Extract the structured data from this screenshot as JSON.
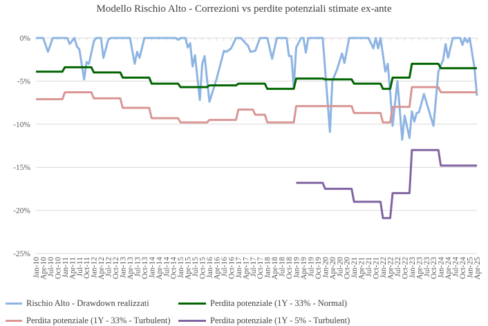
{
  "chart_data": {
    "type": "line",
    "title": "Modello Rischio Alto - Correzioni vs perdite potenziali stimate ex-ante",
    "xlabel": "",
    "ylabel": "",
    "x_range": [
      "2010-01",
      "2025-04"
    ],
    "x_tick_labels": [
      "Jan-10",
      "Apr-10",
      "Jul-10",
      "Oct-10",
      "Jan-11",
      "Apr-11",
      "Jul-11",
      "Oct-11",
      "Jan-12",
      "Apr-12",
      "Jul-12",
      "Oct-12",
      "Jan-13",
      "Apr-13",
      "Jul-13",
      "Oct-13",
      "Jan-14",
      "Apr-14",
      "Jul-14",
      "Oct-14",
      "Jan-15",
      "Apr-15",
      "Jul-15",
      "Oct-15",
      "Jan-16",
      "Apr-16",
      "Jul-16",
      "Oct-16",
      "Jan-17",
      "Apr-17",
      "Jul-17",
      "Oct-17",
      "Jan-18",
      "Apr-18",
      "Jul-18",
      "Oct-18",
      "Jan-19",
      "Apr-19",
      "Jul-19",
      "Oct-19",
      "Jan-20",
      "Apr-20",
      "Jul-20",
      "Oct-20",
      "Jan-21",
      "Apr-21",
      "Jul-21",
      "Oct-21",
      "Jan-22",
      "Apr-22",
      "Jul-22",
      "Oct-22",
      "Jan-23",
      "Apr-23",
      "Jul-23",
      "Oct-23",
      "Jan-24",
      "Apr-24",
      "Jul-24",
      "Oct-24",
      "Jan-25",
      "Apr-25"
    ],
    "ylim": [
      -25,
      0
    ],
    "y_ticks": [
      0,
      -5,
      -10,
      -15,
      -20,
      -25
    ],
    "y_tick_labels": [
      "0%",
      "-5%",
      "-10%",
      "-15%",
      "-20%",
      "-25%"
    ],
    "grid": true,
    "legend_placement": "bottom",
    "series": [
      {
        "name": "Rischio Alto - Drawdown realizzati",
        "color": "#8db4e2",
        "style": "points",
        "points": [
          [
            "2010-01",
            0
          ],
          [
            "2010-04",
            0
          ],
          [
            "2010-06",
            -1.6
          ],
          [
            "2010-08",
            0
          ],
          [
            "2011-02",
            0
          ],
          [
            "2011-03",
            -0.7
          ],
          [
            "2011-05",
            0
          ],
          [
            "2011-06",
            -1.0
          ],
          [
            "2011-07",
            -1.3
          ],
          [
            "2011-09",
            -4.8
          ],
          [
            "2011-10",
            -2.8
          ],
          [
            "2011-11",
            -3.0
          ],
          [
            "2012-01",
            -0.4
          ],
          [
            "2012-02",
            0
          ],
          [
            "2012-04",
            0
          ],
          [
            "2012-05",
            -2.3
          ],
          [
            "2012-07",
            -0.2
          ],
          [
            "2012-08",
            0
          ],
          [
            "2013-04",
            0
          ],
          [
            "2013-06",
            -3.0
          ],
          [
            "2013-07",
            -1.6
          ],
          [
            "2013-08",
            -2.3
          ],
          [
            "2013-10",
            0
          ],
          [
            "2014-11",
            0
          ],
          [
            "2014-12",
            -0.2
          ],
          [
            "2015-01",
            0
          ],
          [
            "2015-03",
            0
          ],
          [
            "2015-04",
            -1.1
          ],
          [
            "2015-05",
            -0.6
          ],
          [
            "2015-06",
            -3.3
          ],
          [
            "2015-07",
            -2.0
          ],
          [
            "2015-09",
            -7.2
          ],
          [
            "2015-10",
            -3.0
          ],
          [
            "2015-11",
            -2.1
          ],
          [
            "2016-01",
            -7.4
          ],
          [
            "2016-04",
            -4.7
          ],
          [
            "2016-07",
            -1.5
          ],
          [
            "2016-08",
            -1.6
          ],
          [
            "2016-10",
            -1.2
          ],
          [
            "2016-12",
            0
          ],
          [
            "2017-02",
            0
          ],
          [
            "2017-05",
            -0.9
          ],
          [
            "2017-06",
            -1.6
          ],
          [
            "2017-08",
            -1.5
          ],
          [
            "2017-10",
            0
          ],
          [
            "2018-01",
            0
          ],
          [
            "2018-03",
            -2.4
          ],
          [
            "2018-05",
            0
          ],
          [
            "2018-09",
            0
          ],
          [
            "2018-10",
            -2.1
          ],
          [
            "2018-11",
            -2.1
          ],
          [
            "2018-12",
            -5.7
          ],
          [
            "2019-01",
            -1.1
          ],
          [
            "2019-03",
            0
          ],
          [
            "2019-04",
            0
          ],
          [
            "2019-05",
            -1.7
          ],
          [
            "2019-06",
            0
          ],
          [
            "2019-12",
            0
          ],
          [
            "2020-03",
            -10.9
          ],
          [
            "2020-04",
            -5.0
          ],
          [
            "2020-06",
            -3.6
          ],
          [
            "2020-08",
            -1.8
          ],
          [
            "2020-09",
            -2.9
          ],
          [
            "2020-11",
            0
          ],
          [
            "2021-07",
            0
          ],
          [
            "2021-09",
            -1.2
          ],
          [
            "2021-10",
            0
          ],
          [
            "2021-11",
            -1.2
          ],
          [
            "2021-12",
            0
          ],
          [
            "2022-02",
            -3.9
          ],
          [
            "2022-03",
            -3.0
          ],
          [
            "2022-04",
            -6.3
          ],
          [
            "2022-05",
            -10.2
          ],
          [
            "2022-07",
            -5.0
          ],
          [
            "2022-09",
            -11.8
          ],
          [
            "2022-10",
            -9.0
          ],
          [
            "2022-12",
            -11.6
          ],
          [
            "2023-01",
            -8.5
          ],
          [
            "2023-02",
            -9.7
          ],
          [
            "2023-03",
            -8.7
          ],
          [
            "2023-04",
            -8.6
          ],
          [
            "2023-06",
            -6.5
          ],
          [
            "2023-10",
            -10.2
          ],
          [
            "2023-12",
            -3.9
          ],
          [
            "2024-02",
            -2.5
          ],
          [
            "2024-03",
            -0.7
          ],
          [
            "2024-04",
            -2.3
          ],
          [
            "2024-06",
            0
          ],
          [
            "2024-09",
            0
          ],
          [
            "2024-10",
            -0.8
          ],
          [
            "2024-11",
            0
          ],
          [
            "2024-12",
            -0.5
          ],
          [
            "2025-01",
            0
          ],
          [
            "2025-03",
            -3.5
          ],
          [
            "2025-04",
            -6.7
          ]
        ]
      },
      {
        "name": "Perdita potenziale (1Y - 33% - Normal)",
        "color": "#006400",
        "style": "steps",
        "steps": [
          [
            "2010-01",
            -3.9
          ],
          [
            "2011-01",
            -3.4
          ],
          [
            "2012-01",
            -4.0
          ],
          [
            "2013-01",
            -4.6
          ],
          [
            "2014-01",
            -5.3
          ],
          [
            "2015-01",
            -5.7
          ],
          [
            "2016-01",
            -5.5
          ],
          [
            "2017-01",
            -5.3
          ],
          [
            "2018-01",
            -5.9
          ],
          [
            "2019-01",
            -4.7
          ],
          [
            "2020-01",
            -4.8
          ],
          [
            "2021-01",
            -5.3
          ],
          [
            "2022-01",
            -5.9
          ],
          [
            "2022-05",
            -4.6
          ],
          [
            "2023-01",
            -3.0
          ],
          [
            "2024-01",
            -3.5
          ]
        ]
      },
      {
        "name": "Perdita potenziale (1Y - 33% - Turbulent)",
        "color": "#d99694",
        "style": "steps",
        "steps": [
          [
            "2010-01",
            -7.1
          ],
          [
            "2011-01",
            -6.3
          ],
          [
            "2012-01",
            -7.0
          ],
          [
            "2013-01",
            -8.1
          ],
          [
            "2014-01",
            -9.3
          ],
          [
            "2015-01",
            -9.8
          ],
          [
            "2016-01",
            -9.5
          ],
          [
            "2017-01",
            -8.3
          ],
          [
            "2017-08",
            -8.9
          ],
          [
            "2018-01",
            -9.8
          ],
          [
            "2019-01",
            -7.9
          ],
          [
            "2021-01",
            -8.7
          ],
          [
            "2022-01",
            -9.8
          ],
          [
            "2022-05",
            -8.0
          ],
          [
            "2023-01",
            -5.7
          ],
          [
            "2024-01",
            -6.3
          ]
        ]
      },
      {
        "name": "Perdita potenziale (1Y - 5% - Turbulent)",
        "color": "#8064a2",
        "style": "steps",
        "steps": [
          [
            "2019-01",
            -16.8
          ],
          [
            "2020-01",
            -17.5
          ],
          [
            "2021-01",
            -19.0
          ],
          [
            "2022-01",
            -20.9
          ],
          [
            "2022-05",
            -18.0
          ],
          [
            "2023-01",
            -13.0
          ],
          [
            "2024-01",
            -14.8
          ]
        ]
      }
    ]
  }
}
